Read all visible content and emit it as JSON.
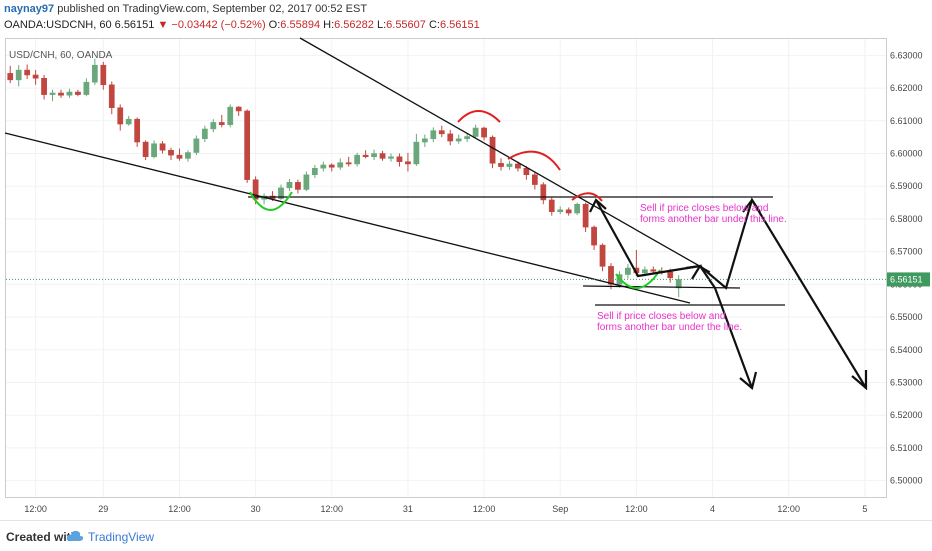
{
  "header": {
    "username": "naynay97",
    "published": "published on TradingView.com, September 02, 2017 00:52 EST",
    "symbol": "OANDA:USDCNH, 60",
    "last": "6.56151",
    "change": "−0.03442 (−0.52%)",
    "open_label": "O:",
    "open": "6.55894",
    "high_label": "H:",
    "high": "6.56282",
    "low_label": "L:",
    "low": "6.55607",
    "close_label": "C:",
    "close": "6.56151"
  },
  "footer": {
    "created_with": "Created with",
    "brand": "TradingView"
  },
  "colors": {
    "up": "#6aa87b",
    "down": "#c0463f",
    "price_line": "#3e9a5e",
    "annotation_text": "#e633c9",
    "arc_red": "#e02020",
    "arc_green": "#22cc22",
    "trendline": "#111111"
  },
  "chart_data": {
    "type": "candlestick",
    "legend_label": "USD/CNH, 60, OANDA",
    "ylim": [
      6.495,
      6.635
    ],
    "y_ticks": [
      "6.63000",
      "6.62000",
      "6.61000",
      "6.60000",
      "6.59000",
      "6.58000",
      "6.57000",
      "6.56000",
      "6.55000",
      "6.54000",
      "6.53000",
      "6.52000",
      "6.51000",
      "6.50000"
    ],
    "y_tick_values": [
      6.63,
      6.62,
      6.61,
      6.6,
      6.59,
      6.58,
      6.57,
      6.56,
      6.55,
      6.54,
      6.53,
      6.52,
      6.51,
      6.5
    ],
    "last_price_label": "6.56151",
    "last_price": 6.56151,
    "x_bars_total": 104,
    "x_ticks": [
      {
        "label": "12:00",
        "bar": 3
      },
      {
        "label": "29",
        "bar": 11
      },
      {
        "label": "12:00",
        "bar": 20
      },
      {
        "label": "30",
        "bar": 29
      },
      {
        "label": "12:00",
        "bar": 38
      },
      {
        "label": "31",
        "bar": 47
      },
      {
        "label": "12:00",
        "bar": 56
      },
      {
        "label": "Sep",
        "bar": 65
      },
      {
        "label": "12:00",
        "bar": 74
      },
      {
        "label": "4",
        "bar": 83
      },
      {
        "label": "12:00",
        "bar": 92
      },
      {
        "label": "5",
        "bar": 101
      }
    ],
    "candles": [
      [
        6.6245,
        6.6268,
        6.6215,
        6.6225
      ],
      [
        6.6225,
        6.627,
        6.6205,
        6.6255
      ],
      [
        6.6255,
        6.6272,
        6.6228,
        6.624
      ],
      [
        6.624,
        6.6255,
        6.621,
        6.623
      ],
      [
        6.623,
        6.624,
        6.6165,
        6.618
      ],
      [
        6.618,
        6.6195,
        6.616,
        6.6185
      ],
      [
        6.6185,
        6.6195,
        6.617,
        6.6178
      ],
      [
        6.6178,
        6.6198,
        6.617,
        6.6188
      ],
      [
        6.6188,
        6.6195,
        6.6175,
        6.618
      ],
      [
        6.618,
        6.623,
        6.6175,
        6.6218
      ],
      [
        6.6218,
        6.629,
        6.621,
        6.627
      ],
      [
        6.627,
        6.628,
        6.6195,
        6.621
      ],
      [
        6.621,
        6.622,
        6.612,
        6.614
      ],
      [
        6.614,
        6.615,
        6.607,
        6.609
      ],
      [
        6.609,
        6.6115,
        6.6085,
        6.6105
      ],
      [
        6.6105,
        6.611,
        6.602,
        6.6035
      ],
      [
        6.6035,
        6.604,
        6.598,
        6.599
      ],
      [
        6.599,
        6.604,
        6.5985,
        6.603
      ],
      [
        6.603,
        6.6038,
        6.6,
        6.601
      ],
      [
        6.601,
        6.6018,
        6.598,
        6.5995
      ],
      [
        6.5995,
        6.6015,
        6.5978,
        6.5985
      ],
      [
        6.5985,
        6.601,
        6.5975,
        6.6003
      ],
      [
        6.6003,
        6.6055,
        6.5995,
        6.6045
      ],
      [
        6.6045,
        6.6085,
        6.6035,
        6.6075
      ],
      [
        6.6075,
        6.6105,
        6.6065,
        6.6095
      ],
      [
        6.6095,
        6.6118,
        6.608,
        6.6088
      ],
      [
        6.6088,
        6.615,
        6.608,
        6.6142
      ],
      [
        6.6142,
        6.6145,
        6.6115,
        6.613
      ],
      [
        6.613,
        6.6135,
        6.591,
        6.592
      ],
      [
        6.592,
        6.593,
        6.5845,
        6.586
      ],
      [
        6.586,
        6.5878,
        6.5845,
        6.587
      ],
      [
        6.587,
        6.5885,
        6.5855,
        6.5862
      ],
      [
        6.5862,
        6.5905,
        6.5858,
        6.5895
      ],
      [
        6.5895,
        6.5922,
        6.5885,
        6.5912
      ],
      [
        6.5912,
        6.592,
        6.5878,
        6.589
      ],
      [
        6.589,
        6.5945,
        6.5885,
        6.5935
      ],
      [
        6.5935,
        6.5965,
        6.5925,
        6.5955
      ],
      [
        6.5955,
        6.5975,
        6.5945,
        6.5965
      ],
      [
        6.5965,
        6.597,
        6.5945,
        6.5958
      ],
      [
        6.5958,
        6.5985,
        6.595,
        6.5972
      ],
      [
        6.5972,
        6.599,
        6.596,
        6.5968
      ],
      [
        6.5968,
        6.6002,
        6.596,
        6.5995
      ],
      [
        6.5995,
        6.601,
        6.5985,
        6.599
      ],
      [
        6.599,
        6.6012,
        6.598,
        6.6
      ],
      [
        6.6,
        6.6008,
        6.5978,
        6.5985
      ],
      [
        6.5985,
        6.6,
        6.5975,
        6.599
      ],
      [
        6.599,
        6.6,
        6.596,
        6.5975
      ],
      [
        6.5975,
        6.6002,
        6.5945,
        6.5968
      ],
      [
        6.5968,
        6.606,
        6.5962,
        6.6035
      ],
      [
        6.6035,
        6.6058,
        6.602,
        6.6045
      ],
      [
        6.6045,
        6.608,
        6.6035,
        6.607
      ],
      [
        6.607,
        6.6085,
        6.605,
        6.606
      ],
      [
        6.606,
        6.6072,
        6.6025,
        6.6038
      ],
      [
        6.6038,
        6.6058,
        6.603,
        6.6045
      ],
      [
        6.6045,
        6.6062,
        6.6035,
        6.6052
      ],
      [
        6.6052,
        6.6088,
        6.6045,
        6.6078
      ],
      [
        6.6078,
        6.6082,
        6.604,
        6.605
      ],
      [
        6.605,
        6.6055,
        6.5955,
        6.597
      ],
      [
        6.597,
        6.5985,
        6.5948,
        6.596
      ],
      [
        6.596,
        6.5978,
        6.595,
        6.5968
      ],
      [
        6.5968,
        6.5975,
        6.5945,
        6.5955
      ],
      [
        6.5955,
        6.5962,
        6.592,
        6.5935
      ],
      [
        6.5935,
        6.5945,
        6.589,
        6.5905
      ],
      [
        6.5905,
        6.5912,
        6.5845,
        6.5858
      ],
      [
        6.5858,
        6.5865,
        6.581,
        6.5822
      ],
      [
        6.5822,
        6.5838,
        6.5815,
        6.5828
      ],
      [
        6.5828,
        6.5835,
        6.581,
        6.5818
      ],
      [
        6.5818,
        6.585,
        6.5812,
        6.5845
      ],
      [
        6.5845,
        6.585,
        6.576,
        6.5775
      ],
      [
        6.5775,
        6.578,
        6.5705,
        6.572
      ],
      [
        6.572,
        6.5725,
        6.564,
        6.5655
      ],
      [
        6.5655,
        6.5665,
        6.5585,
        6.56
      ],
      [
        6.56,
        6.564,
        6.559,
        6.563
      ],
      [
        6.563,
        6.5662,
        6.5618,
        6.565
      ],
      [
        6.565,
        6.5705,
        6.5625,
        6.5635
      ],
      [
        6.5635,
        6.5655,
        6.5625,
        6.5645
      ],
      [
        6.5645,
        6.5655,
        6.5632,
        6.564
      ],
      [
        6.564,
        6.5652,
        6.563,
        6.5638
      ],
      [
        6.5638,
        6.5648,
        6.5605,
        6.562
      ],
      [
        6.5589,
        6.5628,
        6.5561,
        6.5615
      ]
    ],
    "annotations": [
      {
        "type": "text",
        "lines": [
          "Sell if price closes below and",
          "forms another bar under this line."
        ]
      },
      {
        "type": "text",
        "lines": [
          "Sell if price closes below and",
          "forms another bar under the line."
        ]
      }
    ]
  }
}
